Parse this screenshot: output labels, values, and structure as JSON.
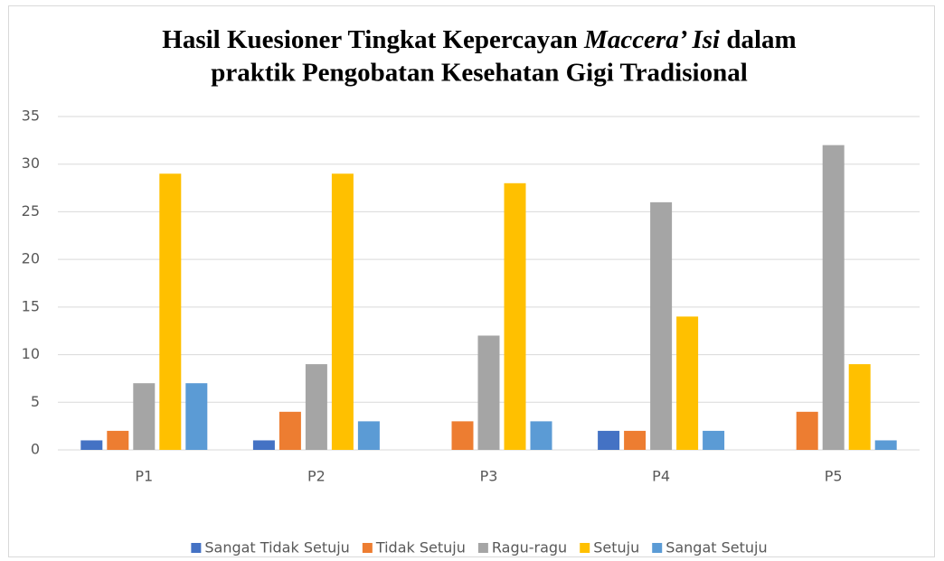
{
  "chart_data": {
    "type": "bar",
    "title": [
      "Hasil Kuesioner Tingkat Kepercayan",
      "Maccera’ Isi",
      "dalam",
      "praktik Pengobatan Kesehatan Gigi Tradisional"
    ],
    "categories": [
      "P1",
      "P2",
      "P3",
      "P4",
      "P5"
    ],
    "series": [
      {
        "name": "Sangat Tidak Setuju",
        "color": "#4472c4",
        "values": [
          1,
          1,
          0,
          2,
          0
        ]
      },
      {
        "name": "Tidak Setuju",
        "color": "#ed7d31",
        "values": [
          2,
          4,
          3,
          2,
          4
        ]
      },
      {
        "name": "Ragu-ragu",
        "color": "#a5a5a5",
        "values": [
          7,
          9,
          12,
          26,
          32
        ]
      },
      {
        "name": "Setuju",
        "color": "#ffc000",
        "values": [
          29,
          29,
          28,
          14,
          9
        ]
      },
      {
        "name": "Sangat Setuju",
        "color": "#5b9bd5",
        "values": [
          7,
          3,
          3,
          2,
          1
        ]
      }
    ],
    "ylim": [
      0,
      35
    ],
    "yticks": [
      0,
      5,
      10,
      15,
      20,
      25,
      30,
      35
    ],
    "grid": true,
    "legend": "bottom"
  }
}
